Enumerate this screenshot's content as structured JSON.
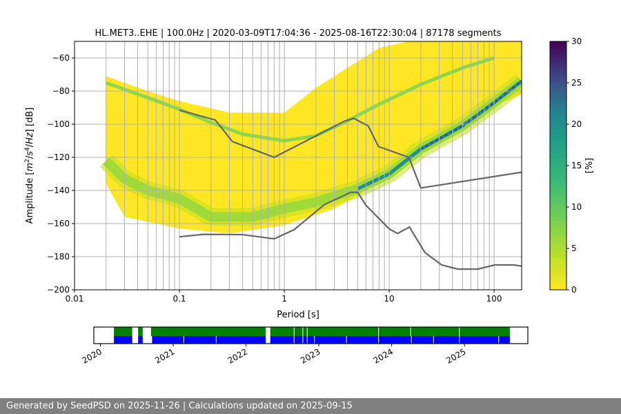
{
  "chart_data": {
    "type": "heatmap",
    "title": "HL.MET3..EHE | 100.0Hz | 2020-03-09T17:04:36 - 2025-08-16T22:30:04 | 87178 segments",
    "xlabel": "Period [s]",
    "ylabel_parts": [
      "Amplitude [",
      "m",
      "2",
      "/",
      "s",
      "4",
      "/",
      "Hz",
      "] [dB]"
    ],
    "xscale": "log",
    "xlim": [
      0.01,
      183
    ],
    "ylim": [
      -200,
      -50
    ],
    "xticks": [
      {
        "v": 0.01,
        "label": "0.01"
      },
      {
        "v": 0.1,
        "label": "0.1"
      },
      {
        "v": 1,
        "label": "1"
      },
      {
        "v": 10,
        "label": "10"
      },
      {
        "v": 100,
        "label": "100"
      }
    ],
    "yticks": [
      {
        "v": -60,
        "label": "−60"
      },
      {
        "v": -80,
        "label": "−80"
      },
      {
        "v": -100,
        "label": "−100"
      },
      {
        "v": -120,
        "label": "−120"
      },
      {
        "v": -140,
        "label": "−140"
      },
      {
        "v": -160,
        "label": "−160"
      },
      {
        "v": -180,
        "label": "−180"
      },
      {
        "v": -200,
        "label": "−200"
      }
    ],
    "grid": true,
    "colorbar": {
      "label": "[%]",
      "range": [
        0,
        30
      ],
      "colormap": "viridis_r",
      "ticks": [
        "0",
        "5",
        "10",
        "15",
        "20",
        "25",
        "30"
      ]
    },
    "density_envelope": {
      "upper": [
        [
          0.02,
          -71
        ],
        [
          0.05,
          -80
        ],
        [
          0.1,
          -86
        ],
        [
          0.3,
          -93
        ],
        [
          1,
          -93
        ],
        [
          2,
          -78
        ],
        [
          4,
          -66
        ],
        [
          8,
          -54
        ],
        [
          15,
          -50
        ],
        [
          183,
          -50
        ]
      ],
      "lower": [
        [
          0.02,
          -136
        ],
        [
          0.03,
          -156
        ],
        [
          0.1,
          -163
        ],
        [
          0.3,
          -166
        ],
        [
          1,
          -161
        ],
        [
          3,
          -151
        ],
        [
          5,
          -143
        ],
        [
          10,
          -132
        ],
        [
          20,
          -118
        ],
        [
          50,
          -102
        ],
        [
          100,
          -89
        ],
        [
          183,
          -82
        ]
      ]
    },
    "mode_curves": [
      {
        "name": "upper-mode",
        "percent": 8,
        "points": [
          [
            0.02,
            -75
          ],
          [
            0.05,
            -84
          ],
          [
            0.1,
            -91
          ],
          [
            0.2,
            -99
          ],
          [
            0.4,
            -106
          ],
          [
            1,
            -110
          ],
          [
            2,
            -107
          ],
          [
            4,
            -98
          ],
          [
            8,
            -88
          ],
          [
            20,
            -76
          ],
          [
            50,
            -66
          ],
          [
            100,
            -60
          ]
        ]
      },
      {
        "name": "lower-mode",
        "percent": 7,
        "points": [
          [
            0.02,
            -122
          ],
          [
            0.03,
            -133
          ],
          [
            0.05,
            -140
          ],
          [
            0.1,
            -145
          ],
          [
            0.2,
            -156
          ],
          [
            0.5,
            -156
          ],
          [
            1,
            -151
          ],
          [
            2,
            -147
          ],
          [
            5,
            -139
          ],
          [
            10,
            -130
          ],
          [
            20,
            -115
          ],
          [
            50,
            -101
          ],
          [
            100,
            -87
          ],
          [
            183,
            -74
          ]
        ]
      },
      {
        "name": "lower-mode-dense",
        "percent": 20,
        "points": [
          [
            5,
            -139
          ],
          [
            10,
            -130
          ],
          [
            20,
            -115
          ],
          [
            50,
            -101
          ],
          [
            100,
            -87
          ],
          [
            183,
            -74
          ]
        ]
      }
    ],
    "noise_models": [
      {
        "name": "NHNM",
        "points": [
          [
            0.1,
            -91.5
          ],
          [
            0.22,
            -97.5
          ],
          [
            0.32,
            -110.5
          ],
          [
            0.8,
            -120
          ],
          [
            3.8,
            -98
          ],
          [
            4.6,
            -96.5
          ],
          [
            6.3,
            -101
          ],
          [
            7.9,
            -113.5
          ],
          [
            15.4,
            -120
          ],
          [
            20,
            -138.5
          ],
          [
            183,
            -129
          ]
        ]
      },
      {
        "name": "NLNM",
        "points": [
          [
            0.1,
            -168
          ],
          [
            0.17,
            -166.5
          ],
          [
            0.4,
            -166.7
          ],
          [
            0.8,
            -169.2
          ],
          [
            1.24,
            -163.7
          ],
          [
            2.4,
            -148.6
          ],
          [
            4.3,
            -141.1
          ],
          [
            5,
            -141.1
          ],
          [
            6,
            -149
          ],
          [
            10,
            -163.2
          ],
          [
            12,
            -166
          ],
          [
            15.6,
            -162.1
          ],
          [
            21.9,
            -177.5
          ],
          [
            31.6,
            -185
          ],
          [
            45,
            -187.5
          ],
          [
            70,
            -187.5
          ],
          [
            101,
            -185
          ],
          [
            154,
            -185
          ],
          [
            183,
            -185.7
          ]
        ]
      }
    ],
    "coverage": {
      "xlim": [
        2019.91,
        2025.87
      ],
      "year_ticks": [
        "2020",
        "2021",
        "2022",
        "2023",
        "2024",
        "2025"
      ],
      "data_range": [
        2020.186,
        2025.623
      ],
      "green_gaps": [
        [
          2020.437,
          2020.518
        ],
        [
          2020.581,
          2020.695
        ],
        [
          2022.27,
          2022.333
        ]
      ],
      "green_breaks": [
        2022.66,
        2022.78,
        2022.84,
        2023.82,
        2024.26,
        2024.93
      ],
      "blue_gaps": [
        [
          2020.437,
          2020.518
        ],
        [
          2020.581,
          2020.71
        ],
        [
          2022.27,
          2022.333
        ]
      ],
      "blue_breaks": [
        2021.145,
        2021.59,
        2022.66,
        2022.78,
        2022.84,
        2022.94,
        2023.38,
        2023.82,
        2024.27,
        2024.575,
        2024.93,
        2025.47
      ]
    }
  },
  "footer": "Generated by SeedPSD on 2025-11-26 | Calculations updated on 2025-09-15"
}
